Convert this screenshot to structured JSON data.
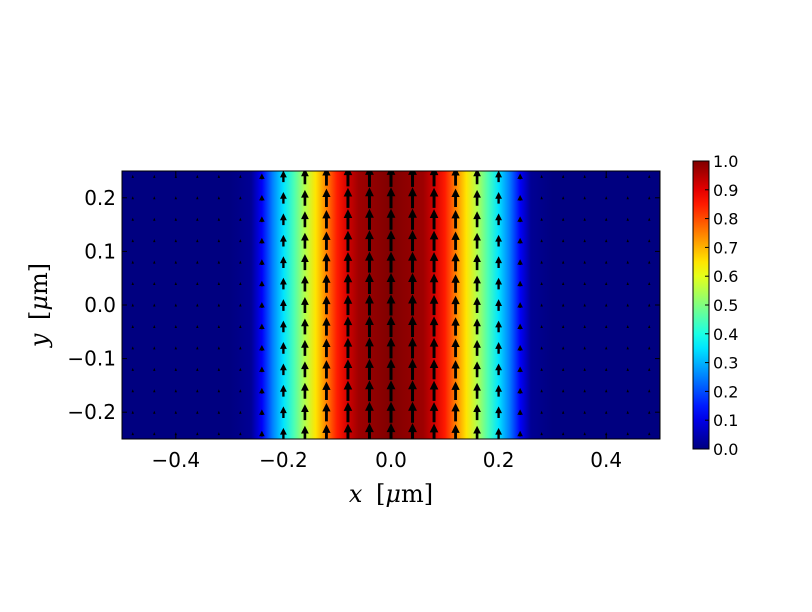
{
  "chart_data": {
    "type": "heatmap",
    "title": "",
    "field": "gaussian beam intensity with vector field arrows",
    "xlabel": {
      "var": "x",
      "unit_prefix": "μ",
      "unit": "m",
      "open": "[",
      "close": "]"
    },
    "ylabel": {
      "var": "y",
      "unit_prefix": "μ",
      "unit": "m",
      "open": "[",
      "close": "]"
    },
    "xlim": [
      -0.5,
      0.5
    ],
    "ylim": [
      -0.25,
      0.25
    ],
    "xticks": [
      -0.4,
      -0.2,
      0.0,
      0.2,
      0.4
    ],
    "xtick_labels": [
      "−0.4",
      "−0.2",
      "0.0",
      "0.2",
      "0.4"
    ],
    "yticks": [
      -0.2,
      -0.1,
      0.0,
      0.1,
      0.2
    ],
    "ytick_labels": [
      "−0.2",
      "−0.1",
      "0.0",
      "0.1",
      "0.2"
    ],
    "colormap": "jet",
    "colorbar": {
      "range": [
        0.0,
        1.0
      ],
      "ticks": [
        0.0,
        0.1,
        0.2,
        0.3,
        0.4,
        0.5,
        0.6,
        0.7,
        0.8,
        0.9,
        1.0
      ],
      "tick_labels": [
        "0.0",
        "0.1",
        "0.2",
        "0.3",
        "0.4",
        "0.5",
        "0.6",
        "0.7",
        "0.8",
        "0.9",
        "1.0"
      ],
      "placement": "right"
    },
    "intensity_profile": {
      "x": [
        -0.5,
        -0.3,
        -0.26,
        -0.24,
        -0.22,
        -0.2,
        -0.18,
        -0.16,
        -0.14,
        -0.12,
        -0.1,
        -0.08,
        -0.06,
        0.0,
        0.06,
        0.08,
        0.1,
        0.12,
        0.14,
        0.16,
        0.18,
        0.2,
        0.22,
        0.24,
        0.26,
        0.3,
        0.5
      ],
      "value": [
        0.0,
        0.0,
        0.02,
        0.12,
        0.25,
        0.35,
        0.45,
        0.55,
        0.65,
        0.75,
        0.85,
        0.92,
        0.97,
        1.0,
        0.97,
        0.92,
        0.85,
        0.75,
        0.65,
        0.55,
        0.45,
        0.35,
        0.25,
        0.12,
        0.02,
        0.0,
        0.0
      ]
    },
    "quiver": {
      "direction": "+y",
      "x": [
        -0.48,
        -0.44,
        -0.4,
        -0.36,
        -0.32,
        -0.28,
        -0.24,
        -0.2,
        -0.16,
        -0.12,
        -0.08,
        -0.04,
        0.0,
        0.04,
        0.08,
        0.12,
        0.16,
        0.2,
        0.24,
        0.28,
        0.32,
        0.36,
        0.4,
        0.44,
        0.48
      ],
      "y": [
        -0.24,
        -0.2,
        -0.16,
        -0.12,
        -0.08,
        -0.04,
        0.0,
        0.04,
        0.08,
        0.12,
        0.16,
        0.2,
        0.24
      ],
      "magnitude": [
        0.0,
        0.0,
        0.0,
        0.0,
        0.01,
        0.03,
        0.1,
        0.45,
        0.7,
        0.85,
        0.95,
        1.0,
        1.0,
        1.0,
        0.95,
        0.85,
        0.7,
        0.45,
        0.1,
        0.03,
        0.01,
        0.0,
        0.0,
        0.0,
        0.0
      ]
    }
  }
}
